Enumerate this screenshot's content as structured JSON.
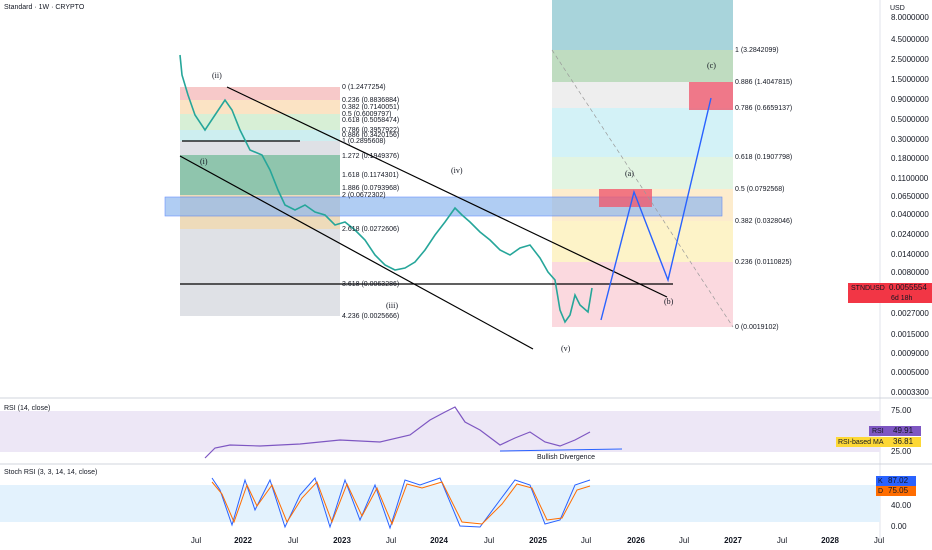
{
  "header": {
    "title": "Standard · 1W · CRYPTO",
    "currency": "USD"
  },
  "price_axis": {
    "labels": [
      "8.0000000",
      "4.5000000",
      "2.5000000",
      "1.5000000",
      "0.9000000",
      "0.5000000",
      "0.3000000",
      "0.1800000",
      "0.1100000",
      "0.0650000",
      "0.0400000",
      "0.0240000",
      "0.0140000",
      "0.0080000",
      "0.0027000",
      "0.0015000",
      "0.0009000",
      "0.0005000",
      "0.0003300"
    ],
    "badge": {
      "symbol": "STNDUSD",
      "price": "0.0055554",
      "countdown": "6d 18h"
    }
  },
  "time_axis": {
    "labels": [
      "Jul",
      "2022",
      "Jul",
      "2023",
      "Jul",
      "2024",
      "Jul",
      "2025",
      "Jul",
      "2026",
      "Jul",
      "2027",
      "Jul",
      "2028",
      "Jul"
    ]
  },
  "left_fib": {
    "labels": [
      "0 (1.2477254)",
      "0.236 (0.8836884)",
      "0.382 (0.7140051)",
      "0.5 (0.6009797)",
      "0.618 (0.5058474)",
      "0.786 (0.3957922)",
      "0.886 (0.3420156)",
      "1 (0.2895608)",
      "1.272 (0.1949376)",
      "1.618 (0.1174301)",
      "1.886 (0.0793968)",
      "2 (0.0672302)",
      "2.618 (0.0272606)",
      "3.618 (0.0063286)",
      "4.236 (0.0025666)"
    ]
  },
  "right_fib": {
    "labels": [
      "1 (3.2842099)",
      "0.886 (1.4047815)",
      "0.786 (0.6659137)",
      "0.618 (0.1907798)",
      "0.5 (0.0792568)",
      "0.382 (0.0328046)",
      "0.236 (0.0110825)",
      "0 (0.0019102)"
    ]
  },
  "waves": {
    "labels": [
      "(ii)",
      "(i)",
      "(iii)",
      "(iv)",
      "(v)",
      "(a)",
      "(b)",
      "(c)"
    ]
  },
  "rsi": {
    "title": "RSI (14, close)",
    "axis": [
      "75.00",
      "25.00"
    ],
    "rsi_label": "RSI",
    "rsi_value": "49.91",
    "ma_label": "RSI-based MA",
    "ma_value": "36.81",
    "annotation": "Bullish Divergence"
  },
  "stoch": {
    "title": "Stoch RSI (3, 3, 14, 14, close)",
    "axis": [
      "40.00",
      "0.00"
    ],
    "k_label": "K",
    "k_value": "87.02",
    "d_label": "D",
    "d_value": "75.05"
  }
}
